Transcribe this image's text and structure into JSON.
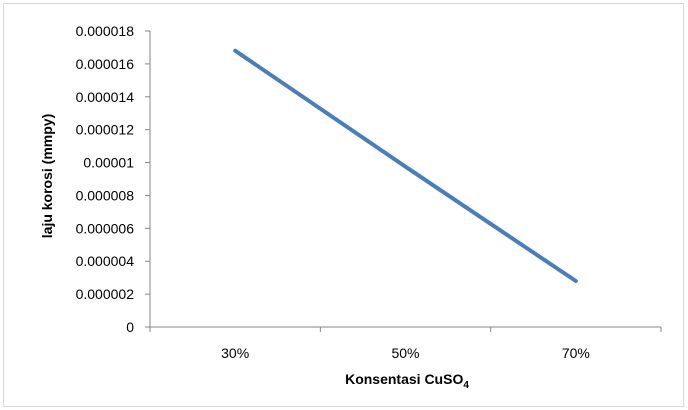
{
  "chart_data": {
    "type": "line",
    "categories": [
      "30%",
      "50%",
      "70%"
    ],
    "series": [
      {
        "values": [
          1.68e-05,
          9.75e-06,
          2.8e-06
        ],
        "color": "#4a7ebb"
      }
    ],
    "xlabel": {
      "main": "Konsentasi CuSO",
      "subscript": "4"
    },
    "ylabel": "laju korosi (mmpy)",
    "ylim": [
      0,
      1.8e-05
    ],
    "yticks": [
      "0",
      "0.000002",
      "0.000004",
      "0.000006",
      "0.000008",
      "0.00001",
      "0.000012",
      "0.000014",
      "0.000016",
      "0.000018"
    ],
    "grid": false,
    "legend": "none"
  }
}
